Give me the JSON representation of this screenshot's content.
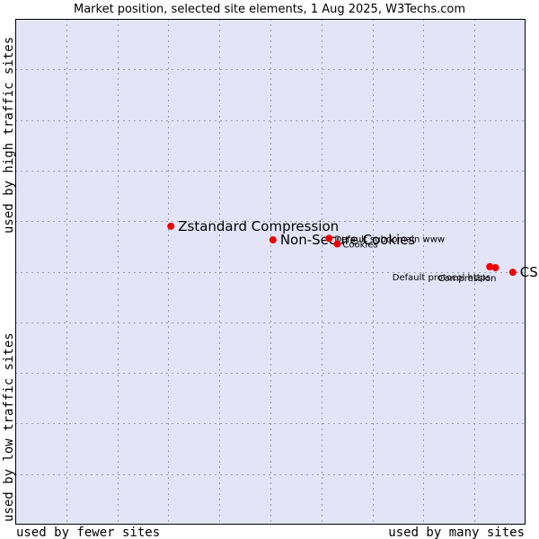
{
  "chart_data": {
    "type": "scatter",
    "title": "Market position, selected site elements, 1 Aug 2025, W3Techs.com",
    "x_low_label": "used by fewer sites",
    "x_high_label": "used by many sites",
    "y_high_label": "used by high traffic sites",
    "y_low_label": "used by low traffic sites",
    "xlim": [
      0,
      10
    ],
    "ylim": [
      0,
      10
    ],
    "grid": true,
    "colors": {
      "plot_bg": "#e4e4f8",
      "point": "#ee0000",
      "grid": "#9a9aaa",
      "frame": "#000000"
    },
    "points": [
      {
        "label": "Zstandard Compression",
        "x": 3.05,
        "y": 5.9,
        "label_size": "large"
      },
      {
        "label": "Non-Secure Cookies",
        "x": 5.05,
        "y": 5.63,
        "label_size": "large"
      },
      {
        "label": "Default subdomain www",
        "x": 6.15,
        "y": 5.66,
        "label_size": "small"
      },
      {
        "label": "Cookies",
        "x": 6.31,
        "y": 5.55,
        "label_size": "small"
      },
      {
        "label": "Default protocol https",
        "x": 9.3,
        "y": 5.1,
        "label_size": "small"
      },
      {
        "label": "Compression",
        "x": 9.41,
        "y": 5.08,
        "label_size": "small"
      },
      {
        "label": "CSS",
        "x": 9.75,
        "y": 4.99,
        "label_size": "large"
      }
    ]
  }
}
